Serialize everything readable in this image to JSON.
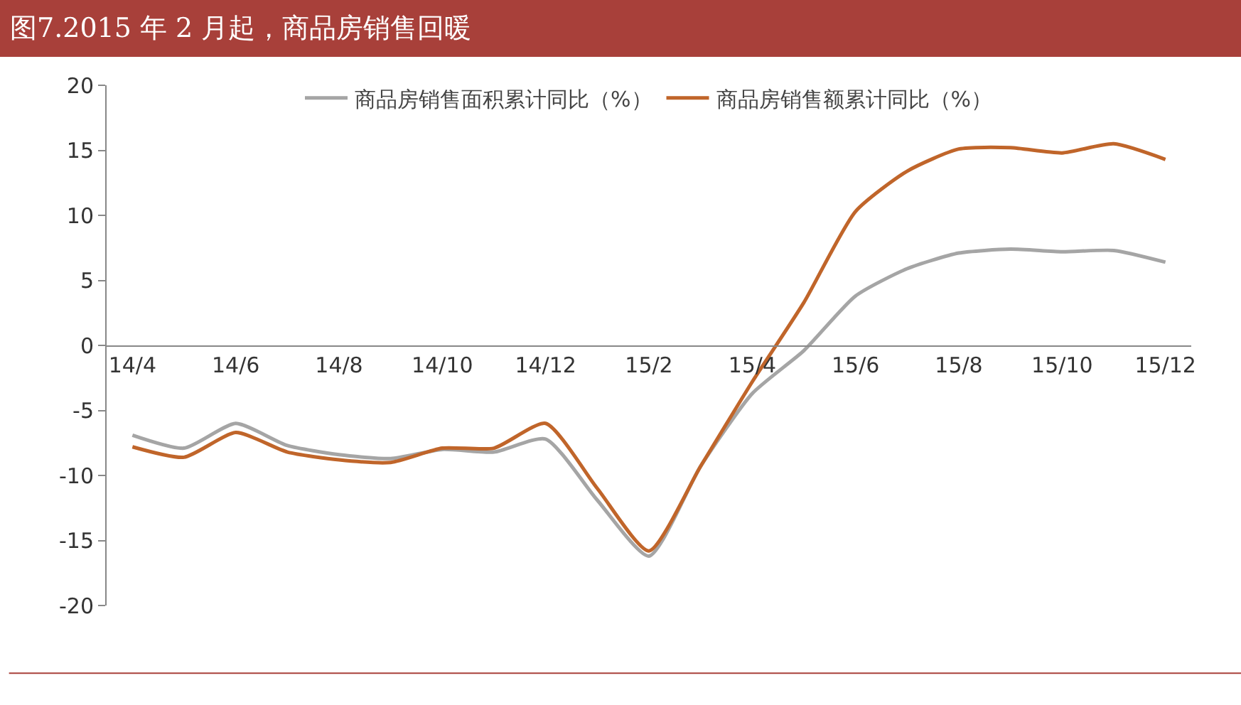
{
  "chart_data": {
    "type": "line",
    "title": "图7.2015 年 2 月起，商品房销售回暖",
    "categories": [
      "14/4",
      null,
      "14/6",
      null,
      "14/8",
      null,
      "14/10",
      null,
      "14/12",
      null,
      "15/2",
      null,
      "15/4",
      null,
      "15/6",
      null,
      "15/8",
      null,
      "15/10",
      null,
      "15/12"
    ],
    "series": [
      {
        "name": "商品房销售面积累计同比（%）",
        "color": "#a5a5a5",
        "values": [
          -6.9,
          -7.9,
          -6.0,
          -7.7,
          -8.4,
          -8.7,
          -8.0,
          -8.2,
          -7.2,
          -11.9,
          -16.2,
          -9.3,
          -3.7,
          -0.4,
          3.8,
          5.9,
          7.1,
          7.4,
          7.2,
          7.3,
          6.4
        ]
      },
      {
        "name": "商品房销售额累计同比（%）",
        "color": "#c0652a",
        "values": [
          -7.8,
          -8.6,
          -6.7,
          -8.2,
          -8.8,
          -9.0,
          -7.9,
          -7.9,
          -6.0,
          -11.0,
          -15.8,
          -9.3,
          -2.8,
          3.3,
          10.3,
          13.4,
          15.1,
          15.2,
          14.8,
          15.5,
          14.3
        ]
      }
    ],
    "ylim": [
      -20,
      20
    ],
    "yticks": [
      -20,
      -15,
      -10,
      -5,
      0,
      5,
      10,
      15,
      20
    ],
    "legend": "top",
    "marker": "none",
    "line_style": "solid"
  }
}
